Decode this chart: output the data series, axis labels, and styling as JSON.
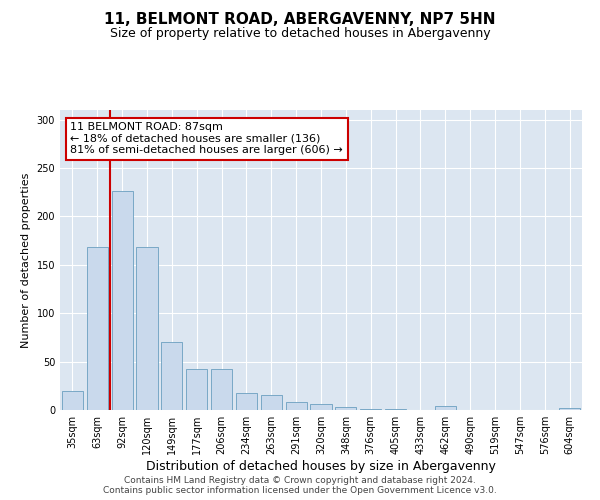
{
  "title": "11, BELMONT ROAD, ABERGAVENNY, NP7 5HN",
  "subtitle": "Size of property relative to detached houses in Abergavenny",
  "xlabel": "Distribution of detached houses by size in Abergavenny",
  "ylabel": "Number of detached properties",
  "categories": [
    "35sqm",
    "63sqm",
    "92sqm",
    "120sqm",
    "149sqm",
    "177sqm",
    "206sqm",
    "234sqm",
    "263sqm",
    "291sqm",
    "320sqm",
    "348sqm",
    "376sqm",
    "405sqm",
    "433sqm",
    "462sqm",
    "490sqm",
    "519sqm",
    "547sqm",
    "576sqm",
    "604sqm"
  ],
  "values": [
    20,
    168,
    226,
    168,
    70,
    42,
    42,
    18,
    15,
    8,
    6,
    3,
    1,
    1,
    0,
    4,
    0,
    0,
    0,
    0,
    2
  ],
  "bar_color": "#c9d9ec",
  "bar_edge_color": "#6a9fc0",
  "vline_color": "#cc0000",
  "vline_x": 1.5,
  "annotation_text": "11 BELMONT ROAD: 87sqm\n← 18% of detached houses are smaller (136)\n81% of semi-detached houses are larger (606) →",
  "annotation_box_color": "#ffffff",
  "annotation_box_edge": "#cc0000",
  "ylim": [
    0,
    310
  ],
  "yticks": [
    0,
    50,
    100,
    150,
    200,
    250,
    300
  ],
  "background_color": "#dce6f1",
  "footer_line1": "Contains HM Land Registry data © Crown copyright and database right 2024.",
  "footer_line2": "Contains public sector information licensed under the Open Government Licence v3.0.",
  "title_fontsize": 11,
  "subtitle_fontsize": 9,
  "xlabel_fontsize": 9,
  "ylabel_fontsize": 8,
  "tick_fontsize": 7,
  "annotation_fontsize": 8,
  "footer_fontsize": 6.5
}
